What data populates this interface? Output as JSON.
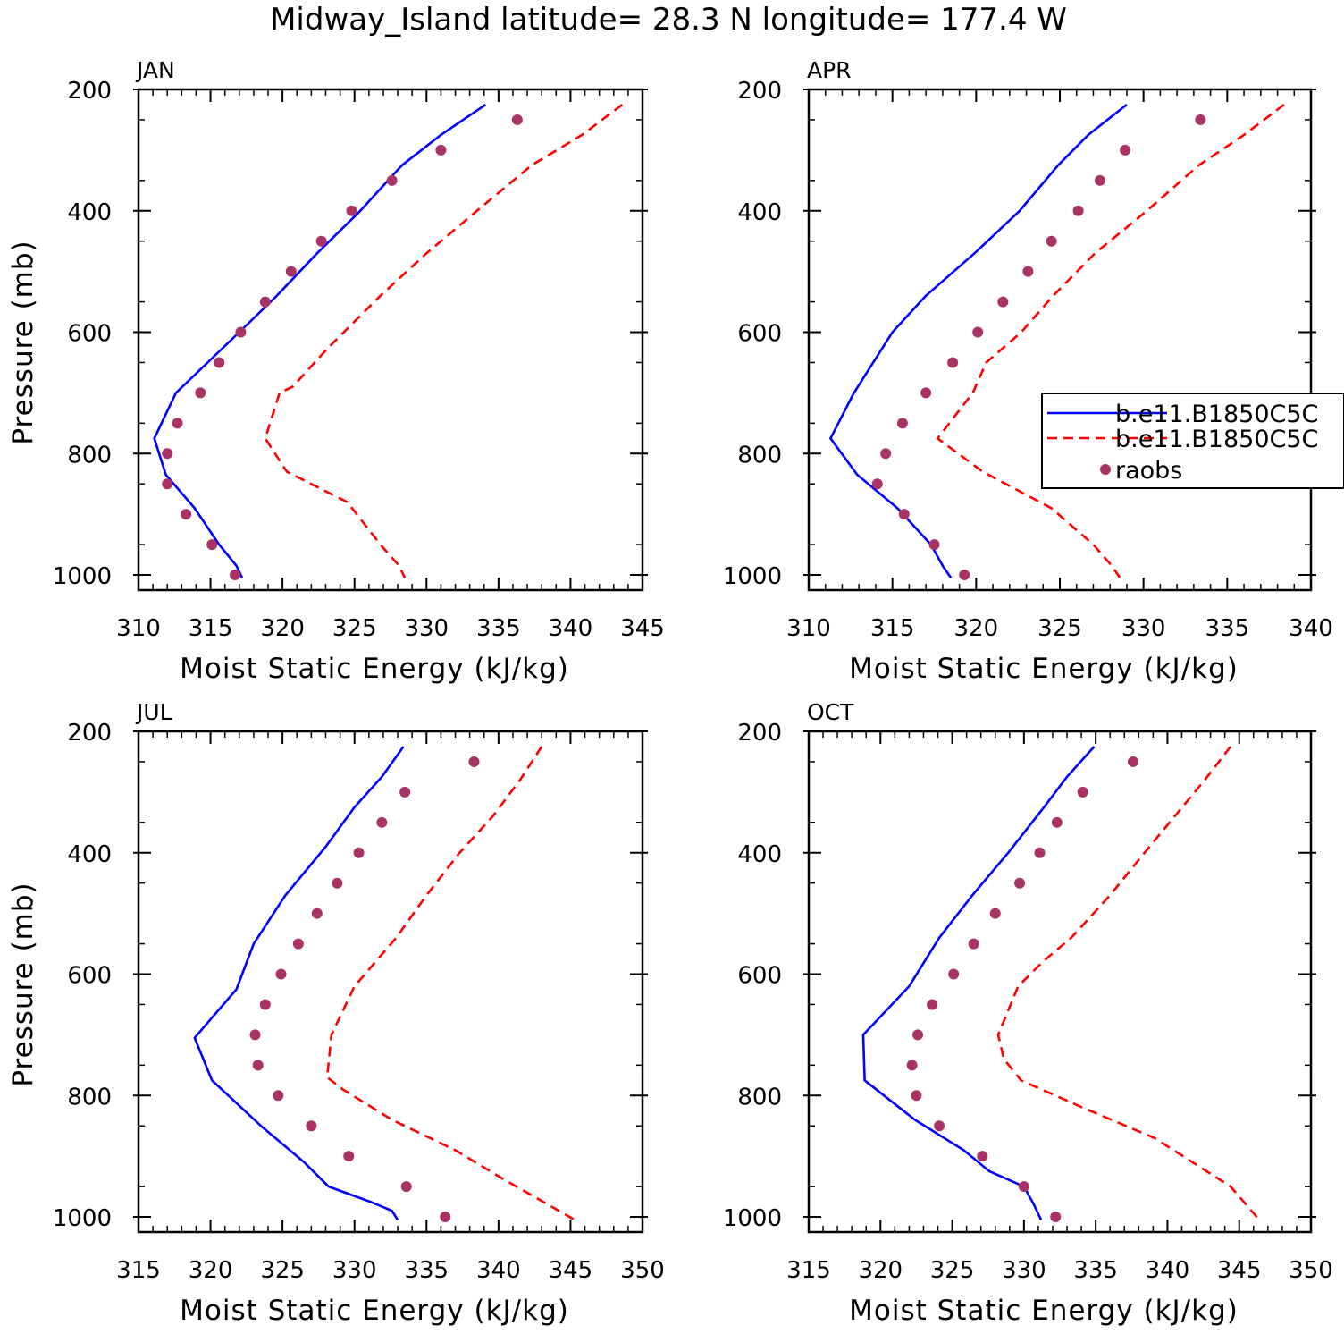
{
  "chart_data": {
    "title": "Midway_Island  latitude= 28.3 N longitude= 177.4 W",
    "legend": {
      "placement": "right-middle of APR panel",
      "entries": [
        {
          "label": "b.e11.B1850C5C",
          "style": "solid",
          "color": "#0000ff"
        },
        {
          "label": "b.e11.B1850C5C",
          "style": "dashed",
          "color": "#ff0000"
        },
        {
          "label": "raobs",
          "style": "dot",
          "color": "#aa3366"
        }
      ]
    },
    "panels": [
      {
        "name": "JAN",
        "type": "line",
        "xlabel": "Moist Static Energy (kJ/kg)",
        "ylabel": "Pressure (mb)",
        "xlim": [
          310,
          345
        ],
        "xticks": [
          "310",
          "315",
          "320",
          "325",
          "330",
          "335",
          "340",
          "345"
        ],
        "ylim": [
          1025,
          200
        ],
        "yticks": [
          "200",
          "400",
          "600",
          "800",
          "1000"
        ],
        "series": [
          {
            "name": "b.e11.B1850C5C",
            "style": "solid",
            "x": [
              334.1,
              331.0,
              328.3,
              325.4,
              322.4,
              319.6,
              317.0,
              312.6,
              311.1,
              311.9,
              313.9,
              315.6,
              316.8,
              317.2
            ],
            "y": [
              225,
              275,
              325,
              400,
              470,
              540,
              600,
              700,
              775,
              835,
              890,
              950,
              985,
              1005
            ]
          },
          {
            "name": "b.e11.B1850C5C",
            "style": "dashed",
            "x": [
              343.6,
              340.8,
              337.3,
              333.5,
              330.0,
              326.8,
              323.2,
              320.7,
              319.8,
              318.8,
              320.3,
              324.5,
              326.8,
              328.1,
              328.5
            ],
            "y": [
              225,
              275,
              325,
              400,
              470,
              540,
              625,
              690,
              700,
              775,
              830,
              880,
              950,
              985,
              1005
            ]
          },
          {
            "name": "raobs",
            "style": "dot",
            "x": [
              336.3,
              331.0,
              327.6,
              324.8,
              322.7,
              320.6,
              318.8,
              317.1,
              315.6,
              314.3,
              312.7,
              312.0,
              312.0,
              313.3,
              315.1,
              316.7
            ],
            "y": [
              250,
              300,
              350,
              400,
              450,
              500,
              550,
              600,
              650,
              700,
              750,
              800,
              850,
              900,
              950,
              1000
            ]
          }
        ]
      },
      {
        "name": "APR",
        "type": "line",
        "xlabel": "Moist Static Energy (kJ/kg)",
        "ylabel": "",
        "xlim": [
          310,
          340
        ],
        "xticks": [
          "310",
          "315",
          "320",
          "325",
          "330",
          "335",
          "340"
        ],
        "ylim": [
          1025,
          200
        ],
        "yticks": [
          "200",
          "400",
          "600",
          "800",
          "1000"
        ],
        "series": [
          {
            "name": "b.e11.B1850C5C",
            "style": "solid",
            "x": [
              329.0,
              326.7,
              324.9,
              322.6,
              319.9,
              317.0,
              315.0,
              312.7,
              311.3,
              312.9,
              315.3,
              317.3,
              318.0,
              318.5
            ],
            "y": [
              225,
              275,
              325,
              400,
              470,
              540,
              600,
              700,
              775,
              835,
              890,
              950,
              985,
              1005
            ]
          },
          {
            "name": "b.e11.B1850C5C",
            "style": "dashed",
            "x": [
              338.4,
              336.0,
              333.3,
              330.2,
              327.1,
              324.6,
              322.7,
              320.6,
              319.8,
              317.7,
              320.4,
              324.5,
              327.0,
              328.1,
              328.6
            ],
            "y": [
              225,
              275,
              325,
              400,
              470,
              540,
              600,
              650,
              700,
              775,
              830,
              890,
              950,
              985,
              1005
            ]
          },
          {
            "name": "raobs",
            "style": "dot",
            "x": [
              333.4,
              328.9,
              327.4,
              326.1,
              324.5,
              323.1,
              321.6,
              320.1,
              318.6,
              317.0,
              315.6,
              314.6,
              314.1,
              315.7,
              317.5,
              319.3
            ],
            "y": [
              250,
              300,
              350,
              400,
              450,
              500,
              550,
              600,
              650,
              700,
              750,
              800,
              850,
              900,
              950,
              1000
            ]
          }
        ]
      },
      {
        "name": "JUL",
        "type": "line",
        "xlabel": "Moist Static Energy (kJ/kg)",
        "ylabel": "Pressure (mb)",
        "xlim": [
          315,
          350
        ],
        "xticks": [
          "315",
          "320",
          "325",
          "330",
          "335",
          "340",
          "345",
          "350"
        ],
        "ylim": [
          1025,
          200
        ],
        "yticks": [
          "200",
          "400",
          "600",
          "800",
          "1000"
        ],
        "series": [
          {
            "name": "b.e11.B1850C5C",
            "style": "solid",
            "x": [
              333.4,
              331.9,
              330.0,
              328.0,
              325.2,
              323.0,
              321.8,
              318.9,
              320.1,
              323.5,
              326.5,
              328.2,
              331.1,
              332.6,
              333.0
            ],
            "y": [
              225,
              275,
              325,
              390,
              470,
              550,
              625,
              705,
              775,
              850,
              910,
              950,
              975,
              990,
              1005
            ]
          },
          {
            "name": "b.e11.B1850C5C",
            "style": "dashed",
            "x": [
              343.0,
              341.5,
              339.6,
              337.3,
              335.0,
              332.9,
              330.0,
              328.4,
              328.1,
              329.2,
              332.6,
              337.0,
              340.5,
              344.2,
              345.3
            ],
            "y": [
              225,
              280,
              340,
              400,
              470,
              540,
              620,
              700,
              770,
              790,
              840,
              890,
              940,
              990,
              1005
            ]
          },
          {
            "name": "raobs",
            "style": "dot",
            "x": [
              338.3,
              333.5,
              331.9,
              330.3,
              328.8,
              327.4,
              326.1,
              324.9,
              323.8,
              323.1,
              323.3,
              324.7,
              327.0,
              329.6,
              333.6,
              336.3
            ],
            "y": [
              250,
              300,
              350,
              400,
              450,
              500,
              550,
              600,
              650,
              700,
              750,
              800,
              850,
              900,
              950,
              1000
            ]
          }
        ]
      },
      {
        "name": "OCT",
        "type": "line",
        "xlabel": "Moist Static Energy (kJ/kg)",
        "ylabel": "",
        "xlim": [
          315,
          350
        ],
        "xticks": [
          "315",
          "320",
          "325",
          "330",
          "335",
          "340",
          "345",
          "350"
        ],
        "ylim": [
          1025,
          200
        ],
        "yticks": [
          "200",
          "400",
          "600",
          "800",
          "1000"
        ],
        "series": [
          {
            "name": "b.e11.B1850C5C",
            "style": "solid",
            "x": [
              334.9,
              333.0,
              331.4,
              328.9,
              326.4,
              324.1,
              322.0,
              318.8,
              318.9,
              322.4,
              325.8,
              327.6,
              330.0,
              330.7,
              331.2
            ],
            "y": [
              225,
              275,
              325,
              400,
              470,
              540,
              620,
              700,
              775,
              840,
              890,
              925,
              950,
              980,
              1005
            ]
          },
          {
            "name": "b.e11.B1850C5C",
            "style": "dashed",
            "x": [
              344.4,
              342.6,
              340.5,
              338.4,
              336.0,
              333.3,
              331.3,
              329.6,
              328.2,
              328.6,
              329.8,
              334.1,
              339.1,
              344.4,
              346.4
            ],
            "y": [
              225,
              280,
              340,
              400,
              470,
              540,
              580,
              620,
              700,
              740,
              775,
              820,
              870,
              950,
              1005
            ]
          },
          {
            "name": "raobs",
            "style": "dot",
            "x": [
              337.6,
              334.1,
              332.3,
              331.1,
              329.7,
              328.0,
              326.5,
              325.1,
              323.6,
              322.6,
              322.2,
              322.5,
              324.1,
              327.1,
              330.0,
              332.2
            ],
            "y": [
              250,
              300,
              350,
              400,
              450,
              500,
              550,
              600,
              650,
              700,
              750,
              800,
              850,
              900,
              950,
              1000
            ]
          }
        ]
      }
    ]
  }
}
